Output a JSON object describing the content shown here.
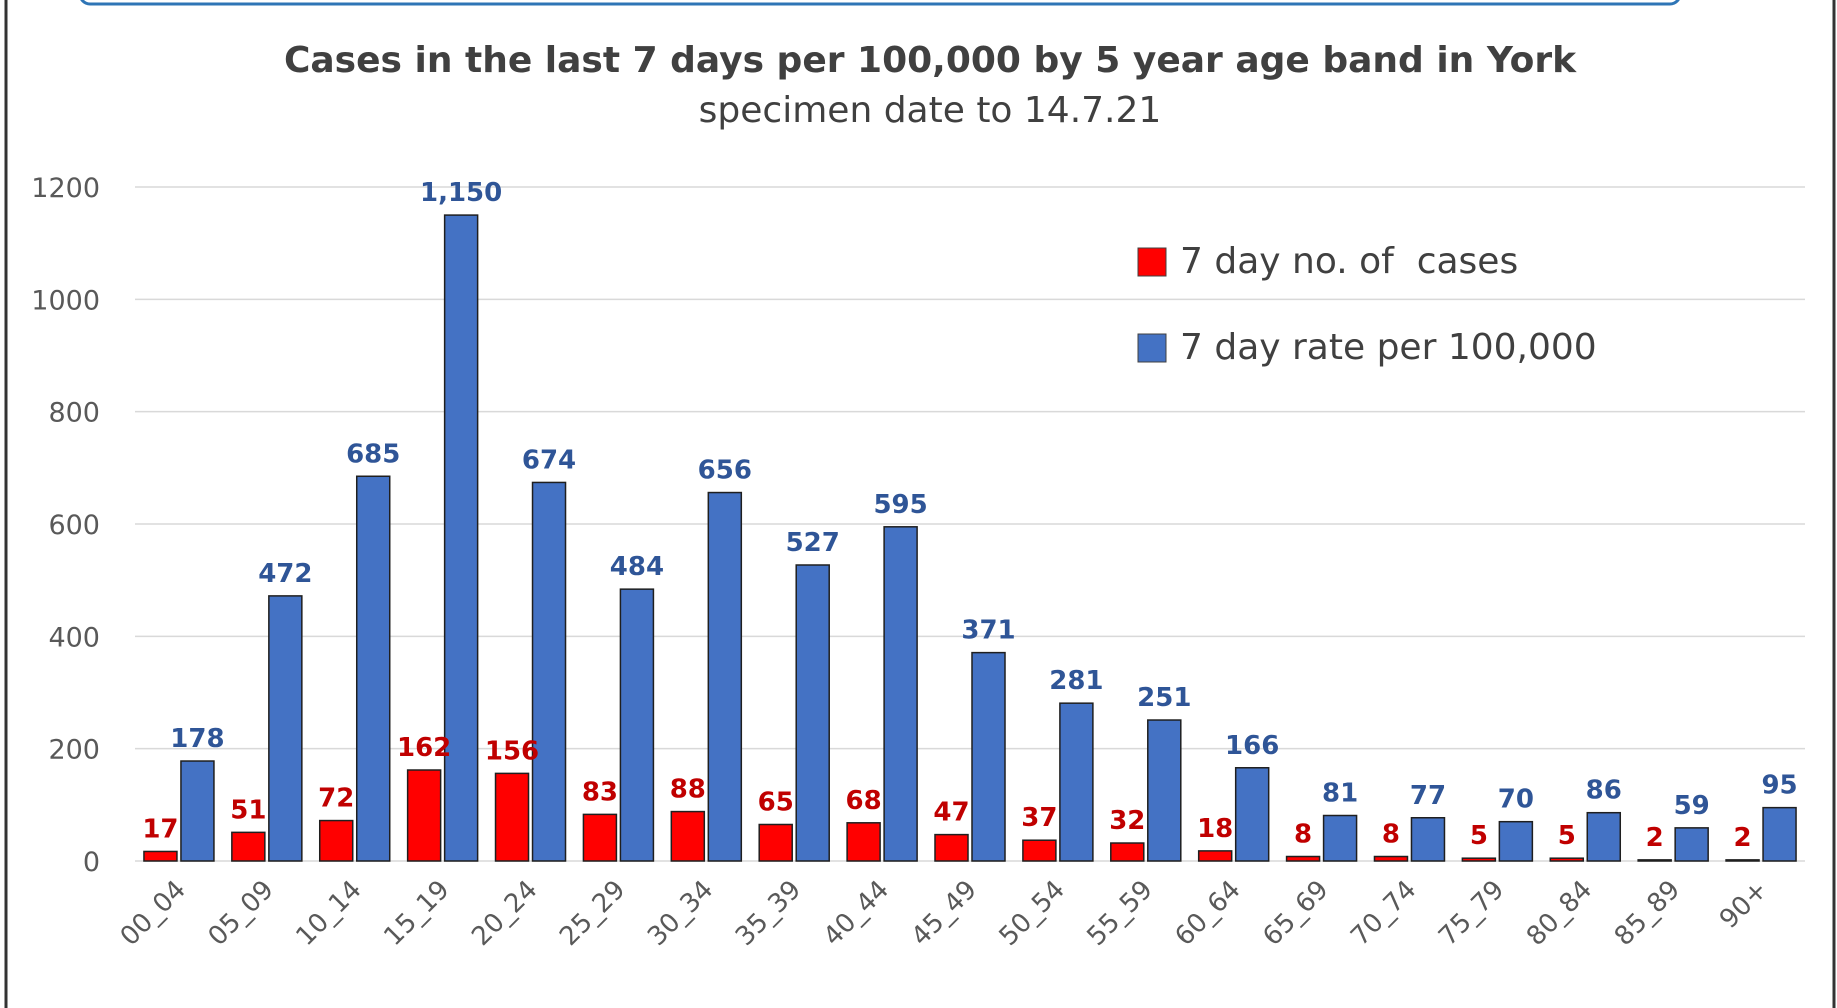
{
  "colors": {
    "cases": "#ff0000",
    "rate": "#4472c4",
    "cases_label": "#c00000",
    "rate_label": "#2f5597",
    "gridline": "#d9d9d9",
    "frame": "#333333",
    "top_banner": "#2e75b6"
  },
  "chart_data": {
    "type": "bar",
    "title": "Cases in the last 7 days per 100,000 by 5 year age band in York",
    "subtitle": "specimen date to 14.7.21",
    "xlabel": "",
    "ylabel": "",
    "ylim": [
      0,
      1200
    ],
    "yticks": [
      "0",
      "200",
      "400",
      "600",
      "800",
      "1000",
      "1200"
    ],
    "grid": true,
    "legend_position": "top-right",
    "categories": [
      "00_04",
      "05_09",
      "10_14",
      "15_19",
      "20_24",
      "25_29",
      "30_34",
      "35_39",
      "40_44",
      "45_49",
      "50_54",
      "55_59",
      "60_64",
      "65_69",
      "70_74",
      "75_79",
      "80_84",
      "85_89",
      "90+"
    ],
    "series": [
      {
        "name": "7 day no. of  cases",
        "values": [
          17,
          51,
          72,
          162,
          156,
          83,
          88,
          65,
          68,
          47,
          37,
          32,
          18,
          8,
          8,
          5,
          5,
          2,
          2
        ],
        "labels": [
          "17",
          "51",
          "72",
          "162",
          "156",
          "83",
          "88",
          "65",
          "68",
          "47",
          "37",
          "32",
          "18",
          "8",
          "8",
          "5",
          "5",
          "2",
          "2"
        ]
      },
      {
        "name": "7 day rate per 100,000",
        "values": [
          178,
          472,
          685,
          1150,
          674,
          484,
          656,
          527,
          595,
          371,
          281,
          251,
          166,
          81,
          77,
          70,
          86,
          59,
          95
        ],
        "labels": [
          "178",
          "472",
          "685",
          "1,150",
          "674",
          "484",
          "656",
          "527",
          "595",
          "371",
          "281",
          "251",
          "166",
          "81",
          "77",
          "70",
          "86",
          "59",
          "95"
        ]
      }
    ]
  }
}
